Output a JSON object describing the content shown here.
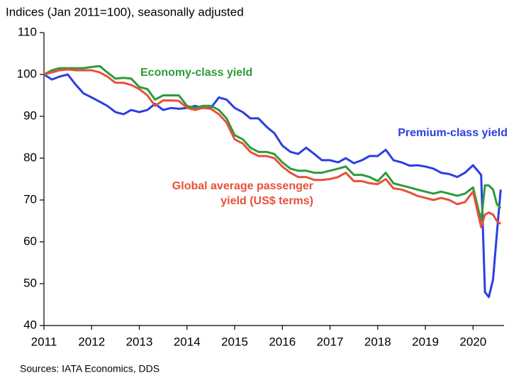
{
  "chart_data": {
    "type": "line",
    "title": "Indices (Jan 2011=100), seasonally adjusted",
    "source": "Sources: IATA Economics, DDS",
    "x": [
      2011.0,
      2011.17,
      2011.33,
      2011.5,
      2011.67,
      2011.83,
      2012.0,
      2012.17,
      2012.33,
      2012.5,
      2012.67,
      2012.83,
      2013.0,
      2013.17,
      2013.33,
      2013.5,
      2013.67,
      2013.83,
      2014.0,
      2014.17,
      2014.33,
      2014.5,
      2014.67,
      2014.83,
      2015.0,
      2015.17,
      2015.33,
      2015.5,
      2015.67,
      2015.83,
      2016.0,
      2016.17,
      2016.33,
      2016.5,
      2016.67,
      2016.83,
      2017.0,
      2017.17,
      2017.33,
      2017.5,
      2017.67,
      2017.83,
      2018.0,
      2018.17,
      2018.33,
      2018.5,
      2018.67,
      2018.83,
      2019.0,
      2019.17,
      2019.33,
      2019.5,
      2019.67,
      2019.83,
      2020.0,
      2020.17,
      2020.25,
      2020.33,
      2020.42,
      2020.5,
      2020.58
    ],
    "series": [
      {
        "name": "Premium-class yield",
        "color": "#2a3fe0",
        "values": [
          100,
          98.8,
          99.5,
          100,
          97.5,
          95.5,
          94.5,
          93.5,
          92.5,
          91,
          90.5,
          91.5,
          91,
          91.5,
          93,
          91.5,
          92,
          91.8,
          92,
          92.5,
          92,
          92,
          94.5,
          94,
          92,
          91,
          89.5,
          89.5,
          87.5,
          86,
          83,
          81.5,
          81,
          82.5,
          81,
          79.5,
          79.5,
          79,
          80,
          78.8,
          79.5,
          80.5,
          80.5,
          82,
          79.5,
          79,
          78.2,
          78.3,
          78,
          77.5,
          76.5,
          76.2,
          75.5,
          76.5,
          78.3,
          76,
          48,
          46.8,
          51,
          62,
          72.5
        ]
      },
      {
        "name": "Economy-class yield",
        "color": "#2e9a3a",
        "values": [
          100,
          101,
          101.5,
          101.5,
          101.5,
          101.5,
          101.8,
          102,
          100.5,
          99,
          99.2,
          99,
          97,
          96.5,
          94,
          95,
          95,
          95,
          92.5,
          92,
          92.5,
          92.5,
          91.5,
          89.5,
          85.5,
          84.5,
          82.5,
          81.5,
          81.5,
          81,
          79,
          77.5,
          77,
          77,
          76.5,
          76.5,
          77,
          77.5,
          78,
          76,
          76,
          75.5,
          74.5,
          76.5,
          74,
          73.5,
          73,
          72.5,
          72,
          71.5,
          72,
          71.5,
          71,
          71.5,
          73,
          65,
          73.5,
          73.5,
          72.5,
          69,
          68
        ]
      },
      {
        "name": "Global average passenger yield (US$ terms)",
        "color": "#e8503a",
        "values": [
          100,
          100.5,
          101,
          101.2,
          101,
          101,
          101,
          100.5,
          99.5,
          98,
          98,
          97.5,
          96.5,
          95,
          92.5,
          93.8,
          93.8,
          93.7,
          92,
          91.5,
          92,
          91.8,
          90.5,
          88.5,
          84.5,
          83.5,
          81.5,
          80.5,
          80.5,
          80,
          78,
          76.5,
          75.5,
          75.5,
          74.8,
          74.8,
          75,
          75.5,
          76.5,
          74.5,
          74.5,
          74,
          73.8,
          75,
          72.8,
          72.5,
          71.8,
          71,
          70.5,
          70,
          70.5,
          70,
          69,
          69.5,
          72,
          63.5,
          66.5,
          67,
          66.5,
          65,
          64.3
        ]
      }
    ],
    "annotations": [
      {
        "lines": [
          "Economy-class yield"
        ],
        "color": "#2e9a3a"
      },
      {
        "lines": [
          "Premium-class yield"
        ],
        "color": "#2a3fe0"
      },
      {
        "lines": [
          "Global average passenger",
          "yield (US$ terms)"
        ],
        "color": "#e8503a"
      }
    ],
    "xlim": [
      2011,
      2020.65
    ],
    "xticks": [
      2011,
      2012,
      2013,
      2014,
      2015,
      2016,
      2017,
      2018,
      2019,
      2020
    ],
    "ylim": [
      40,
      110
    ],
    "yticks": [
      40,
      50,
      60,
      70,
      80,
      90,
      100,
      110
    ],
    "grid": false
  }
}
